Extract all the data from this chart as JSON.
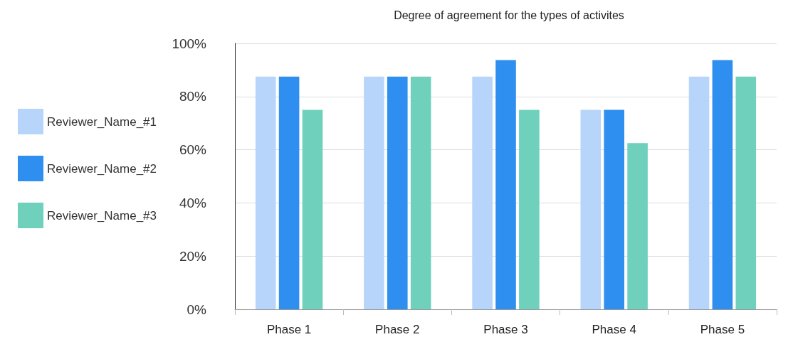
{
  "chart_data": {
    "type": "bar",
    "title": "Degree of agreement for the types of activites",
    "categories": [
      "Phase 1",
      "Phase 2",
      "Phase 3",
      "Phase 4",
      "Phase 5"
    ],
    "series": [
      {
        "name": "Reviewer_Name_#1",
        "color": "#b7d5fb",
        "values": [
          87.5,
          87.5,
          87.5,
          75,
          87.5
        ]
      },
      {
        "name": "Reviewer_Name_#2",
        "color": "#2e8ff0",
        "values": [
          87.5,
          87.5,
          93.75,
          75,
          93.75
        ]
      },
      {
        "name": "Reviewer_Name_#3",
        "color": "#6fd0bc",
        "values": [
          75,
          87.5,
          75,
          62.5,
          87.5
        ]
      }
    ],
    "ylim": [
      0,
      100
    ],
    "yticks": [
      {
        "value": 0,
        "label": "0%"
      },
      {
        "value": 20,
        "label": "20%"
      },
      {
        "value": 40,
        "label": "40%"
      },
      {
        "value": 60,
        "label": "60%"
      },
      {
        "value": 80,
        "label": "80%"
      },
      {
        "value": 100,
        "label": "100%"
      }
    ],
    "grid": "y",
    "legend": "left"
  }
}
